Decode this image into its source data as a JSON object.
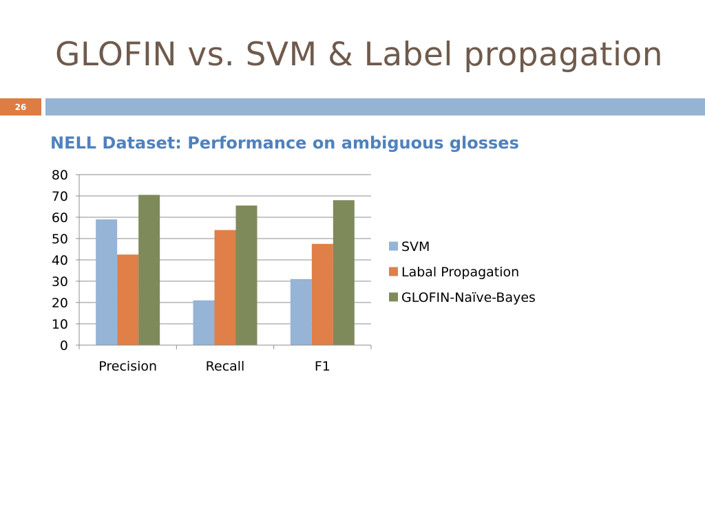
{
  "slide": {
    "title": "GLOFIN vs. SVM & Label propagation",
    "number": "26"
  },
  "colors": {
    "title": "#6f5a4c",
    "number_box": "#dd7c43",
    "top_bar": "#95b4d3",
    "subtitle": "#4f81bd"
  },
  "chart_data": {
    "type": "bar",
    "title": "NELL Dataset: Performance on ambiguous glosses",
    "categories": [
      "Precision",
      "Recall",
      "F1"
    ],
    "series": [
      {
        "name": "SVM",
        "color": "#95b4d6",
        "values": [
          59,
          21,
          31
        ]
      },
      {
        "name": "Labal Propagation",
        "color": "#e07f47",
        "values": [
          42.5,
          54,
          47.5
        ]
      },
      {
        "name": "GLOFIN-Naïve-Bayes",
        "color": "#7f8a5b",
        "values": [
          70.5,
          65.5,
          68
        ]
      }
    ],
    "ylim": [
      0,
      80
    ],
    "yticks": [
      "0",
      "10",
      "20",
      "30",
      "40",
      "50",
      "60",
      "70",
      "80"
    ],
    "grid": true,
    "legend_position": "right"
  }
}
